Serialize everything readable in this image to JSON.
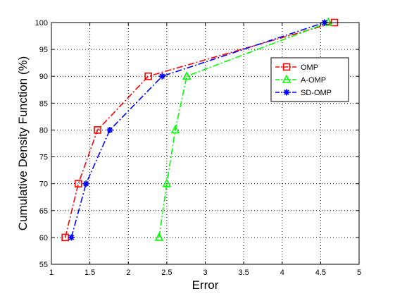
{
  "chart_data": {
    "type": "line",
    "title": "",
    "xlabel": "Error",
    "ylabel": "Cumulative Density Function (%)",
    "xlim": [
      1,
      5
    ],
    "ylim": [
      55,
      100
    ],
    "xticks": [
      "1",
      "1.5",
      "2",
      "2.5",
      "3",
      "3.5",
      "4",
      "4.5",
      "5"
    ],
    "yticks": [
      "55",
      "60",
      "65",
      "70",
      "75",
      "80",
      "85",
      "90",
      "95",
      "100"
    ],
    "grid": true,
    "legend_position": "top-right",
    "series": [
      {
        "name": "OMP",
        "color": "#ff0000",
        "marker": "square",
        "linestyle": "dash-dot",
        "points": [
          [
            1.18,
            60
          ],
          [
            1.35,
            70
          ],
          [
            1.6,
            80
          ],
          [
            2.26,
            90
          ],
          [
            4.68,
            100
          ]
        ]
      },
      {
        "name": "A-OMP",
        "color": "#00ff00",
        "marker": "triangle",
        "linestyle": "dash-dot",
        "points": [
          [
            2.4,
            60
          ],
          [
            2.5,
            70
          ],
          [
            2.61,
            80
          ],
          [
            2.76,
            90
          ],
          [
            4.6,
            100
          ]
        ]
      },
      {
        "name": "SD-OMP",
        "color": "#0000ff",
        "marker": "star",
        "linestyle": "dash-dot",
        "points": [
          [
            1.26,
            60
          ],
          [
            1.45,
            70
          ],
          [
            1.76,
            80
          ],
          [
            2.44,
            90
          ],
          [
            4.55,
            100
          ]
        ]
      }
    ]
  }
}
